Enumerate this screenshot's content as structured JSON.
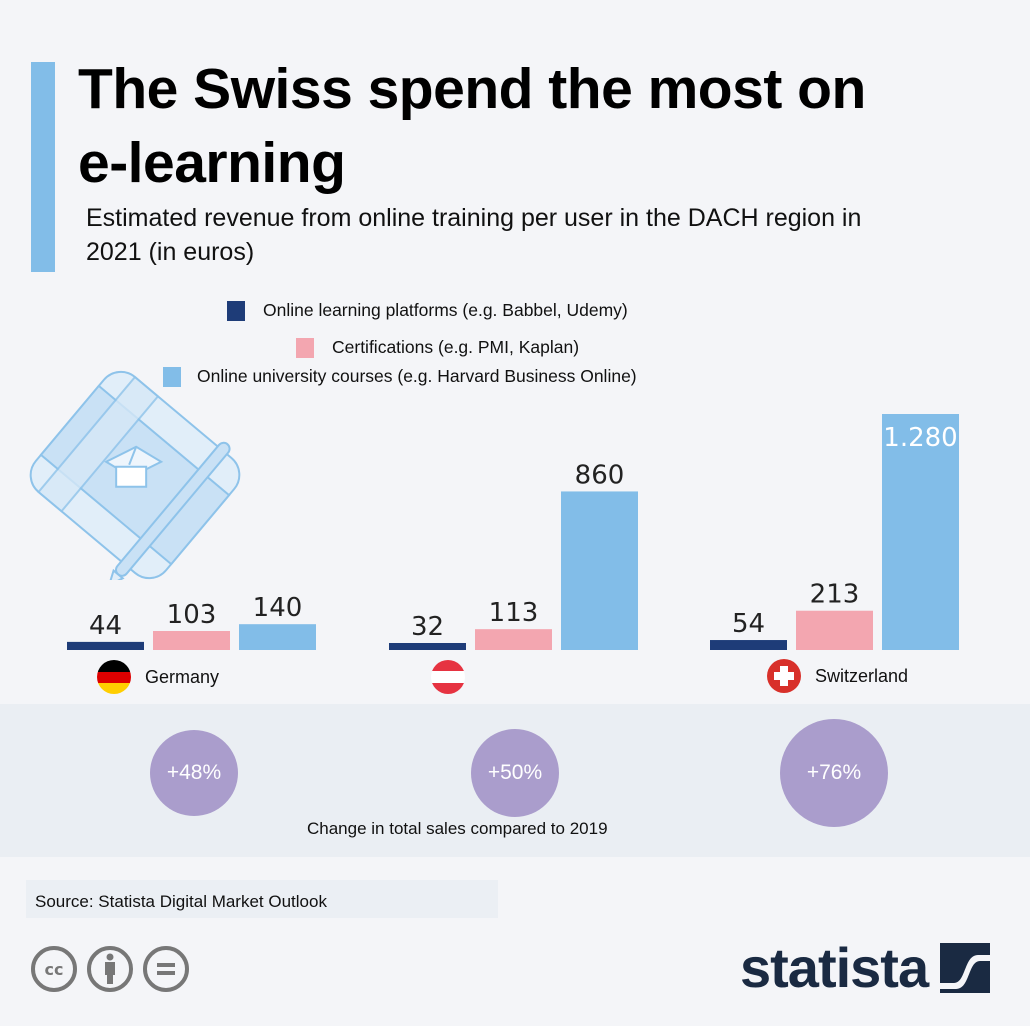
{
  "header": {
    "title": "The Swiss spend the most on e-learning",
    "subtitle": "Estimated revenue from online training per user in the DACH region in 2021 (in euros)"
  },
  "colors": {
    "platforms": "#1e3c78",
    "certifications": "#f3a6b0",
    "university": "#82bde8",
    "accent": "#82bde8",
    "bubble": "#aa9dcc",
    "logo": "#1a2a42"
  },
  "chart_data": {
    "type": "bar",
    "title": "The Swiss spend the most on e-learning",
    "subtitle": "Estimated revenue from online training per user in the DACH region in 2021 (in euros)",
    "xlabel": "",
    "ylabel": "",
    "ylim": [
      0,
      1280
    ],
    "grid": false,
    "legend": "top-center",
    "categories": [
      "Germany",
      "Austria",
      "Switzerland"
    ],
    "series": [
      {
        "name": "Online learning platforms (e.g. Babbel, Udemy)",
        "values": [
          44,
          32,
          54
        ],
        "labels": [
          "44",
          "32",
          "54"
        ]
      },
      {
        "name": "Certifications (e.g. PMI, Kaplan)",
        "values": [
          103,
          113,
          213
        ],
        "labels": [
          "103",
          "113",
          "213"
        ]
      },
      {
        "name": "Online university courses (e.g. Harvard Business Online)",
        "values": [
          140,
          860,
          1280
        ],
        "labels": [
          "140",
          "860",
          "1.280"
        ]
      }
    ],
    "annotations": {
      "caption": "Change in total sales compared to 2019",
      "changes": [
        "+48%",
        "+50%",
        "+76%"
      ]
    }
  },
  "legend": [
    {
      "label": "Online learning platforms (e.g. Babbel, Udemy)"
    },
    {
      "label": "Certifications (e.g. PMI, Kaplan)"
    },
    {
      "label": "Online university courses (e.g. Harvard Business Online)"
    }
  ],
  "countries": [
    {
      "name": "Germany",
      "flag": "germany-flag"
    },
    {
      "name": "",
      "flag": "austria-flag"
    },
    {
      "name": "Switzerland",
      "flag": "switzerland-flag"
    }
  ],
  "change": {
    "values": [
      "+48%",
      "+50%",
      "+76%"
    ],
    "caption": "Change in total sales compared to 2019"
  },
  "footer": {
    "source": "Source: Statista Digital Market Outlook",
    "license_icons": [
      "creative-commons-icon",
      "attribution-icon",
      "no-derivatives-icon"
    ],
    "logo_text": "statista"
  }
}
